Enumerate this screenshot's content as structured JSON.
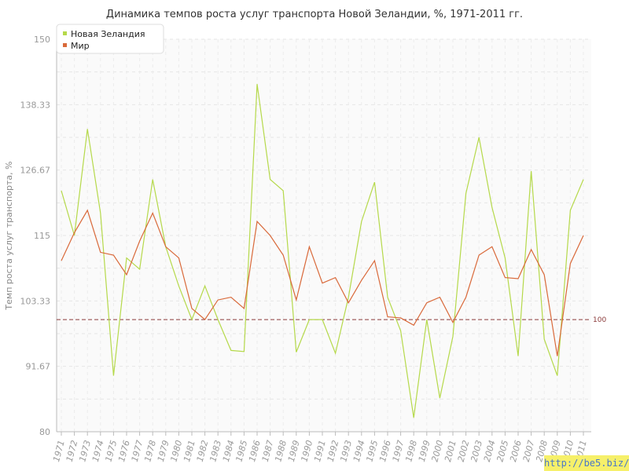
{
  "chart_data": {
    "type": "line",
    "title": "Динамика темпов роста услуг транспорта Новой Зеландии, %, 1971-2011 гг.",
    "xlabel": "",
    "ylabel": "Темп роста услуг транспорта, %",
    "ylim": [
      80,
      150
    ],
    "yticks": [
      "80",
      "91.67",
      "103.33",
      "115",
      "126.67",
      "138.33",
      "150"
    ],
    "reference_line": {
      "value": 100,
      "label": "100",
      "color": "#8b3a3a"
    },
    "categories": [
      "1971",
      "1972",
      "1973",
      "1974",
      "1975",
      "1976",
      "1977",
      "1978",
      "1979",
      "1980",
      "1981",
      "1982",
      "1983",
      "1984",
      "1985",
      "1986",
      "1987",
      "1988",
      "1989",
      "1990",
      "1991",
      "1992",
      "1993",
      "1994",
      "1995",
      "1996",
      "1997",
      "1998",
      "1999",
      "2000",
      "2001",
      "2002",
      "2003",
      "2004",
      "2005",
      "2006",
      "2007",
      "2008",
      "2009",
      "2010",
      "2011"
    ],
    "series": [
      {
        "name": "Новая Зеландия",
        "color": "#b5d94a",
        "values": [
          123,
          115,
          134,
          119,
          90,
          111,
          109,
          125,
          113,
          106,
          100,
          106,
          100,
          94.5,
          94.3,
          142,
          125,
          123,
          94.2,
          100,
          100,
          94,
          104,
          117.5,
          124.5,
          104,
          98,
          82.5,
          100,
          86,
          97,
          122.5,
          132.5,
          120,
          111,
          93.5,
          126.5,
          96.5,
          90,
          119.5,
          125
        ],
        "legend_marker": "square"
      },
      {
        "name": "Мир",
        "color": "#d9693a",
        "values": [
          110.5,
          115.5,
          119.5,
          112,
          111.5,
          108,
          114,
          119,
          113,
          111,
          102,
          100,
          103.5,
          104,
          102,
          117.5,
          115,
          111.5,
          103.5,
          113,
          106.5,
          107.5,
          103,
          107,
          110.5,
          100.5,
          100.3,
          99,
          103,
          104,
          99.5,
          104,
          111.5,
          113,
          107.5,
          107.3,
          112.5,
          108,
          93.5,
          110,
          115
        ]
      }
    ],
    "grid": true,
    "legend_position": "top-left"
  },
  "watermark": "http://be5.biz/"
}
